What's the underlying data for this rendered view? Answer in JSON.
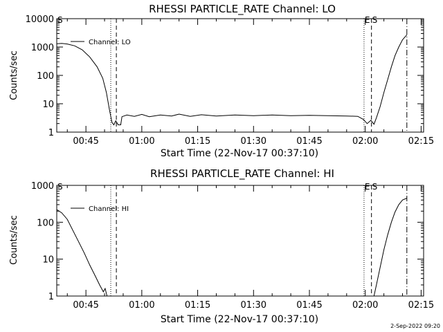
{
  "footer": {
    "timestamp": "2-Sep-2022 09:20"
  },
  "chart_data": [
    {
      "type": "line",
      "title": "RHESSI PARTICLE_RATE Channel: LO",
      "xlabel": "Start Time (22-Nov-17 00:37:10)",
      "ylabel": "Counts/sec",
      "yscale": "log",
      "ylim": [
        1,
        10000
      ],
      "xlim": [
        "00:37:10",
        "02:15:40"
      ],
      "x_ticks": [
        "00:45",
        "01:00",
        "01:15",
        "01:30",
        "01:45",
        "02:00",
        "02:15"
      ],
      "y_ticks": [
        "1",
        "10",
        "100",
        "1000",
        "10000"
      ],
      "legend": {
        "position": "top-left",
        "entries": [
          {
            "label": "Channel: LO"
          }
        ]
      },
      "markers": [
        {
          "label": "S",
          "time": "00:37:10",
          "style": "none"
        },
        {
          "label": "",
          "time": "00:51:40",
          "style": "dotted"
        },
        {
          "label": "",
          "time": "00:53:10",
          "style": "dashed"
        },
        {
          "label": "E",
          "time": "01:59:40",
          "style": "dotted"
        },
        {
          "label": "S",
          "time": "02:01:40",
          "style": "dashed"
        },
        {
          "label": "",
          "time": "02:11:10",
          "style": "dashdot"
        }
      ],
      "series": [
        {
          "name": "Channel: LO",
          "points": [
            [
              "00:37:10",
              1300
            ],
            [
              "00:38:30",
              1350
            ],
            [
              "00:40:00",
              1280
            ],
            [
              "00:42:00",
              1100
            ],
            [
              "00:44:00",
              800
            ],
            [
              "00:46:00",
              450
            ],
            [
              "00:48:00",
              200
            ],
            [
              "00:49:30",
              80
            ],
            [
              "00:50:30",
              25
            ],
            [
              "00:51:20",
              6
            ],
            [
              "00:52:00",
              2.2
            ],
            [
              "00:52:30",
              1.8
            ],
            [
              "00:53:00",
              2.5
            ],
            [
              "00:53:40",
              1.8
            ],
            [
              "00:54:20",
              1.8
            ],
            [
              "00:54:40",
              3.5
            ],
            [
              "00:56:00",
              4.0
            ],
            [
              "00:58:00",
              3.6
            ],
            [
              "01:00:00",
              4.2
            ],
            [
              "01:02:00",
              3.5
            ],
            [
              "01:05:00",
              4.0
            ],
            [
              "01:08:00",
              3.7
            ],
            [
              "01:10:00",
              4.3
            ],
            [
              "01:13:00",
              3.6
            ],
            [
              "01:16:00",
              4.1
            ],
            [
              "01:20:00",
              3.7
            ],
            [
              "01:25:00",
              4.0
            ],
            [
              "01:30:00",
              3.8
            ],
            [
              "01:35:00",
              4.0
            ],
            [
              "01:40:00",
              3.8
            ],
            [
              "01:45:00",
              3.9
            ],
            [
              "01:50:00",
              3.8
            ],
            [
              "01:55:00",
              3.7
            ],
            [
              "01:58:00",
              3.6
            ],
            [
              "01:59:30",
              2.8
            ],
            [
              "02:00:30",
              2.0
            ],
            [
              "02:01:30",
              2.6
            ],
            [
              "02:02:20",
              1.9
            ],
            [
              "02:03:00",
              3.2
            ],
            [
              "02:04:00",
              8
            ],
            [
              "02:05:00",
              25
            ],
            [
              "02:06:00",
              70
            ],
            [
              "02:07:00",
              200
            ],
            [
              "02:08:00",
              500
            ],
            [
              "02:09:00",
              1000
            ],
            [
              "02:10:00",
              1800
            ],
            [
              "02:11:10",
              2700
            ]
          ]
        }
      ]
    },
    {
      "type": "line",
      "title": "RHESSI PARTICLE_RATE Channel: HI",
      "xlabel": "Start Time (22-Nov-17 00:37:10)",
      "ylabel": "Counts/sec",
      "yscale": "log",
      "ylim": [
        1,
        1000
      ],
      "xlim": [
        "00:37:10",
        "02:15:40"
      ],
      "x_ticks": [
        "00:45",
        "01:00",
        "01:15",
        "01:30",
        "01:45",
        "02:00",
        "02:15"
      ],
      "y_ticks": [
        "1",
        "10",
        "100",
        "1000"
      ],
      "legend": {
        "position": "top-left",
        "entries": [
          {
            "label": "Channel: HI"
          }
        ]
      },
      "markers": [
        {
          "label": "S",
          "time": "00:37:10",
          "style": "none"
        },
        {
          "label": "",
          "time": "00:51:40",
          "style": "dotted"
        },
        {
          "label": "",
          "time": "00:53:10",
          "style": "dashed"
        },
        {
          "label": "E",
          "time": "01:59:40",
          "style": "dotted"
        },
        {
          "label": "S",
          "time": "02:01:40",
          "style": "dashed"
        },
        {
          "label": "",
          "time": "02:11:10",
          "style": "dashdot"
        }
      ],
      "series": [
        {
          "name": "Channel: HI",
          "points": [
            [
              "00:37:10",
              220
            ],
            [
              "00:38:30",
              180
            ],
            [
              "00:40:00",
              120
            ],
            [
              "00:41:30",
              60
            ],
            [
              "00:43:00",
              30
            ],
            [
              "00:44:30",
              15
            ],
            [
              "00:46:00",
              7
            ],
            [
              "00:47:30",
              3.5
            ],
            [
              "00:48:40",
              2
            ],
            [
              "00:49:40",
              1.3
            ],
            [
              "00:50:10",
              1.6
            ],
            [
              "00:50:40",
              1.0
            ],
            [
              "02:02:20",
              1.0
            ],
            [
              "02:03:00",
              2
            ],
            [
              "02:04:00",
              6
            ],
            [
              "02:05:00",
              18
            ],
            [
              "02:06:00",
              45
            ],
            [
              "02:07:00",
              100
            ],
            [
              "02:08:00",
              190
            ],
            [
              "02:09:00",
              300
            ],
            [
              "02:10:00",
              400
            ],
            [
              "02:11:10",
              450
            ]
          ]
        }
      ]
    }
  ]
}
